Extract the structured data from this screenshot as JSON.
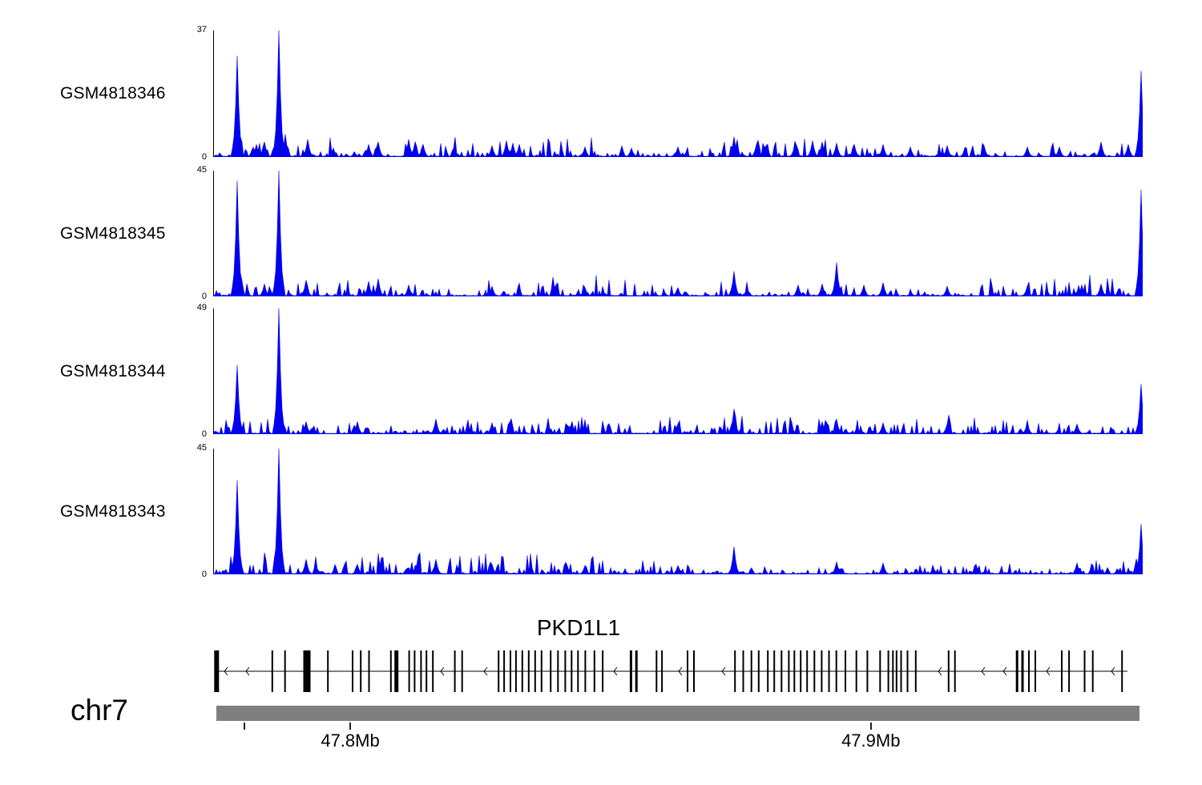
{
  "chart_data": {
    "type": "area",
    "title": "",
    "description": "Genome browser coverage tracks over PKD1L1 locus on chr7",
    "signal_color": "#0000ee",
    "tracks": [
      {
        "label": "GSM4818346",
        "ymax": 37,
        "ymin": 0,
        "seed": 11,
        "peaks": [
          [
            0.0255,
            0.8
          ],
          [
            0.047,
            0.1
          ],
          [
            0.056,
            0.12
          ],
          [
            0.0715,
            1.0
          ],
          [
            0.078,
            0.18
          ],
          [
            0.102,
            0.14
          ],
          [
            0.13,
            0.07
          ],
          [
            0.168,
            0.1
          ],
          [
            0.178,
            0.12
          ],
          [
            0.21,
            0.14
          ],
          [
            0.218,
            0.12
          ],
          [
            0.225,
            0.1
          ],
          [
            0.3,
            0.09
          ],
          [
            0.316,
            0.13
          ],
          [
            0.322,
            0.11
          ],
          [
            0.33,
            0.1
          ],
          [
            0.4,
            0.08
          ],
          [
            0.45,
            0.07
          ],
          [
            0.5,
            0.08
          ],
          [
            0.56,
            0.16
          ],
          [
            0.585,
            0.1
          ],
          [
            0.625,
            0.1
          ],
          [
            0.645,
            0.13
          ],
          [
            0.655,
            0.12
          ],
          [
            0.67,
            0.11
          ],
          [
            0.69,
            0.1
          ],
          [
            0.72,
            0.1
          ],
          [
            0.75,
            0.08
          ],
          [
            0.79,
            0.09
          ],
          [
            0.83,
            0.09
          ],
          [
            0.875,
            0.08
          ],
          [
            0.91,
            0.08
          ],
          [
            0.955,
            0.12
          ],
          [
            0.985,
            0.1
          ],
          [
            0.9975,
            0.68
          ]
        ]
      },
      {
        "label": "GSM4818345",
        "ymax": 45,
        "ymin": 0,
        "seed": 22,
        "peaks": [
          [
            0.0255,
            0.92
          ],
          [
            0.056,
            0.1
          ],
          [
            0.0715,
            1.0
          ],
          [
            0.1,
            0.13
          ],
          [
            0.168,
            0.12
          ],
          [
            0.178,
            0.14
          ],
          [
            0.21,
            0.09
          ],
          [
            0.3,
            0.08
          ],
          [
            0.4,
            0.07
          ],
          [
            0.5,
            0.07
          ],
          [
            0.56,
            0.2
          ],
          [
            0.63,
            0.09
          ],
          [
            0.655,
            0.1
          ],
          [
            0.67,
            0.27
          ],
          [
            0.7,
            0.09
          ],
          [
            0.72,
            0.11
          ],
          [
            0.79,
            0.08
          ],
          [
            0.875,
            0.08
          ],
          [
            0.935,
            0.09
          ],
          [
            0.955,
            0.1
          ],
          [
            0.9975,
            0.85
          ]
        ]
      },
      {
        "label": "GSM4818344",
        "ymax": 49,
        "ymin": 0,
        "seed": 33,
        "peaks": [
          [
            0.0255,
            0.55
          ],
          [
            0.0715,
            1.0
          ],
          [
            0.1,
            0.1
          ],
          [
            0.155,
            0.1
          ],
          [
            0.24,
            0.12
          ],
          [
            0.3,
            0.09
          ],
          [
            0.4,
            0.07
          ],
          [
            0.5,
            0.08
          ],
          [
            0.56,
            0.2
          ],
          [
            0.655,
            0.1
          ],
          [
            0.67,
            0.12
          ],
          [
            0.72,
            0.09
          ],
          [
            0.79,
            0.08
          ],
          [
            0.875,
            0.09
          ],
          [
            0.93,
            0.08
          ],
          [
            0.9975,
            0.4
          ]
        ]
      },
      {
        "label": "GSM4818343",
        "ymax": 45,
        "ymin": 0,
        "seed": 44,
        "peaks": [
          [
            0.0255,
            0.75
          ],
          [
            0.0715,
            1.0
          ],
          [
            0.1,
            0.12
          ],
          [
            0.155,
            0.08
          ],
          [
            0.24,
            0.12
          ],
          [
            0.3,
            0.08
          ],
          [
            0.4,
            0.07
          ],
          [
            0.5,
            0.07
          ],
          [
            0.56,
            0.22
          ],
          [
            0.67,
            0.1
          ],
          [
            0.72,
            0.09
          ],
          [
            0.82,
            0.08
          ],
          [
            0.93,
            0.09
          ],
          [
            0.9975,
            0.4
          ]
        ]
      }
    ],
    "gene": {
      "name": "PKD1L1",
      "strand": "left",
      "exons": [
        [
          0.002,
          6
        ],
        [
          0.063,
          2
        ],
        [
          0.077,
          2
        ],
        [
          0.101,
          9
        ],
        [
          0.124,
          2
        ],
        [
          0.151,
          2
        ],
        [
          0.16,
          2
        ],
        [
          0.169,
          2
        ],
        [
          0.193,
          2
        ],
        [
          0.199,
          5
        ],
        [
          0.213,
          2
        ],
        [
          0.219,
          2
        ],
        [
          0.226,
          2
        ],
        [
          0.232,
          2
        ],
        [
          0.239,
          2
        ],
        [
          0.263,
          2
        ],
        [
          0.271,
          2
        ],
        [
          0.311,
          2
        ],
        [
          0.317,
          2
        ],
        [
          0.324,
          2
        ],
        [
          0.33,
          2
        ],
        [
          0.337,
          2
        ],
        [
          0.344,
          2
        ],
        [
          0.351,
          2
        ],
        [
          0.358,
          2
        ],
        [
          0.368,
          2
        ],
        [
          0.376,
          2
        ],
        [
          0.384,
          2
        ],
        [
          0.391,
          2
        ],
        [
          0.398,
          2
        ],
        [
          0.406,
          2
        ],
        [
          0.416,
          2
        ],
        [
          0.425,
          2
        ],
        [
          0.456,
          3
        ],
        [
          0.462,
          3
        ],
        [
          0.484,
          2
        ],
        [
          0.49,
          2
        ],
        [
          0.518,
          2
        ],
        [
          0.525,
          2
        ],
        [
          0.57,
          2
        ],
        [
          0.579,
          2
        ],
        [
          0.588,
          2
        ],
        [
          0.596,
          2
        ],
        [
          0.606,
          2
        ],
        [
          0.613,
          2
        ],
        [
          0.621,
          2
        ],
        [
          0.629,
          2
        ],
        [
          0.635,
          2
        ],
        [
          0.642,
          2
        ],
        [
          0.649,
          2
        ],
        [
          0.657,
          2
        ],
        [
          0.665,
          2
        ],
        [
          0.673,
          2
        ],
        [
          0.681,
          2
        ],
        [
          0.691,
          2
        ],
        [
          0.703,
          2
        ],
        [
          0.715,
          2
        ],
        [
          0.729,
          2
        ],
        [
          0.738,
          2
        ],
        [
          0.743,
          2
        ],
        [
          0.747,
          2
        ],
        [
          0.752,
          2
        ],
        [
          0.759,
          2
        ],
        [
          0.768,
          2
        ],
        [
          0.804,
          2
        ],
        [
          0.811,
          2
        ],
        [
          0.879,
          3
        ],
        [
          0.885,
          3
        ],
        [
          0.892,
          2
        ],
        [
          0.899,
          2
        ],
        [
          0.928,
          2
        ],
        [
          0.936,
          2
        ],
        [
          0.953,
          2
        ],
        [
          0.962,
          2
        ],
        [
          0.994,
          2
        ]
      ]
    },
    "region": {
      "chromosome": "chr7",
      "xticks": [
        {
          "pos": 0.03,
          "label": ""
        },
        {
          "pos": 0.145,
          "label": "47.8Mb"
        },
        {
          "pos": 0.709,
          "label": "47.9Mb"
        }
      ]
    }
  }
}
